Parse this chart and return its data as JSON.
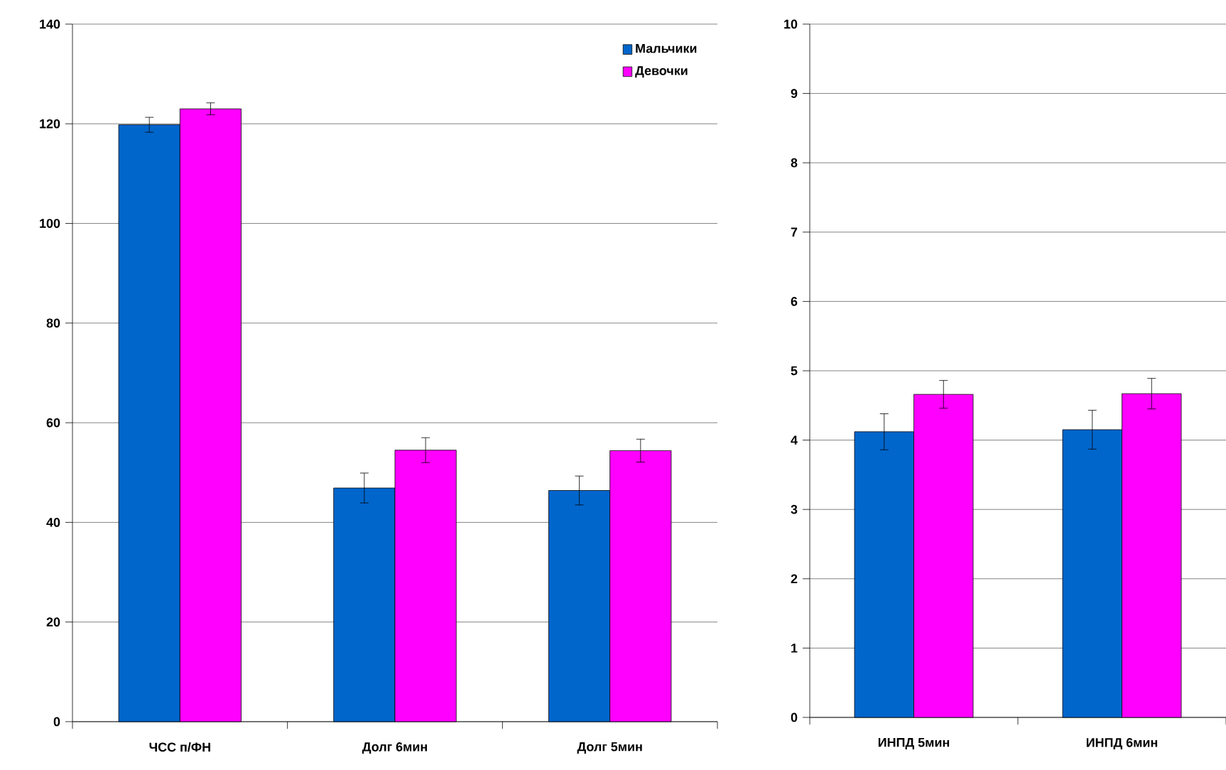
{
  "chart_data": [
    {
      "type": "bar",
      "categories": [
        "ЧСС  п/ФН",
        "Долг 6мин",
        "Долг 5мин"
      ],
      "series": [
        {
          "name": "Мальчики",
          "color": "#0066cc",
          "values": [
            119.8,
            46.9,
            46.4
          ],
          "errors": [
            1.5,
            3,
            2.9
          ]
        },
        {
          "name": "Девочки",
          "color": "#ff00ff",
          "values": [
            123,
            54.5,
            54.4
          ],
          "errors": [
            1.2,
            2.5,
            2.3
          ]
        }
      ],
      "ylim": [
        0,
        140
      ],
      "yticks": [
        0,
        20,
        40,
        60,
        80,
        100,
        120,
        140
      ],
      "grid": "y",
      "legend": "top right"
    },
    {
      "type": "bar",
      "categories": [
        "ИНПД 5мин",
        "ИНПД  6мин"
      ],
      "series": [
        {
          "color": "#0066cc",
          "values": [
            4.12,
            4.15
          ],
          "errors": [
            0.26,
            0.28
          ]
        },
        {
          "color": "#ff00ff",
          "values": [
            4.66,
            4.67
          ],
          "errors": [
            0.2,
            0.22
          ]
        }
      ],
      "ylim": [
        0,
        10
      ],
      "yticks": [
        0,
        1,
        2,
        3,
        4,
        5,
        6,
        7,
        8,
        9,
        10
      ],
      "grid": "y"
    }
  ]
}
